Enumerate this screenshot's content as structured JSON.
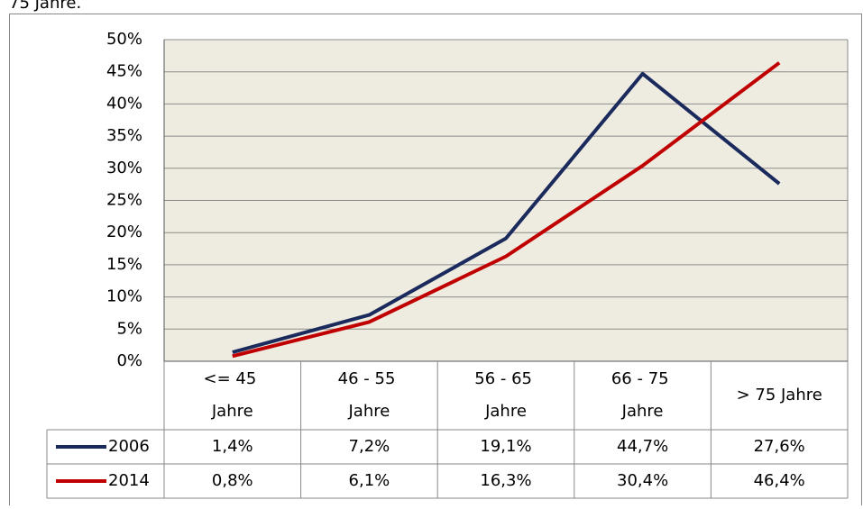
{
  "caption_fragment": "75 Jahre.",
  "chart_data": {
    "type": "line",
    "categories": [
      "<= 45 Jahre",
      "46 - 55 Jahre",
      "56 - 65 Jahre",
      "66 - 75 Jahre",
      "> 75 Jahre"
    ],
    "series": [
      {
        "name": "2006",
        "color": "#1b2a5c",
        "values": [
          1.4,
          7.2,
          19.1,
          44.7,
          27.6
        ],
        "value_labels": [
          "1,4%",
          "7,2%",
          "19,1%",
          "44,7%",
          "27,6%"
        ]
      },
      {
        "name": "2014",
        "color": "#c00000",
        "values": [
          0.8,
          6.1,
          16.3,
          30.4,
          46.4
        ],
        "value_labels": [
          "0,8%",
          "6,1%",
          "16,3%",
          "30,4%",
          "46,4%"
        ]
      }
    ],
    "ylim": [
      0,
      50
    ],
    "yticks": [
      {
        "value": 0,
        "label": "0%"
      },
      {
        "value": 5,
        "label": "5%"
      },
      {
        "value": 10,
        "label": "10%"
      },
      {
        "value": 15,
        "label": "15%"
      },
      {
        "value": 20,
        "label": "20%"
      },
      {
        "value": 25,
        "label": "25%"
      },
      {
        "value": 30,
        "label": "30%"
      },
      {
        "value": 35,
        "label": "35%"
      },
      {
        "value": 40,
        "label": "40%"
      },
      {
        "value": 45,
        "label": "45%"
      },
      {
        "value": 50,
        "label": "50%"
      }
    ],
    "grid": true,
    "plot_background": "#eeebe0",
    "data_table": true
  }
}
